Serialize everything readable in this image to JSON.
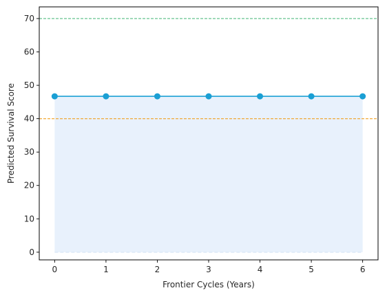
{
  "chart_data": {
    "type": "line",
    "title": "",
    "xlabel": "Frontier Cycles (Years)",
    "ylabel": "Predicted Survival Score",
    "x": [
      0,
      1,
      2,
      3,
      4,
      5,
      6
    ],
    "xlim": [
      -0.3,
      6.3
    ],
    "ylim": [
      -2.3,
      73.5
    ],
    "xticks": [
      0,
      1,
      2,
      3,
      4,
      5,
      6
    ],
    "yticks": [
      0,
      10,
      20,
      30,
      40,
      50,
      60,
      70
    ],
    "grid": false,
    "series": [
      {
        "values": [
          46.7,
          46.7,
          46.7,
          46.7,
          46.7,
          46.7,
          46.7
        ],
        "color": "#1a9fd4",
        "marker": "circle",
        "fill_color": "#e8f1fc"
      }
    ],
    "reference_lines": [
      {
        "y": 70,
        "color": "#3cb371",
        "style": "dashed"
      },
      {
        "y": 40,
        "color": "#f0a020",
        "style": "dashed"
      }
    ]
  }
}
